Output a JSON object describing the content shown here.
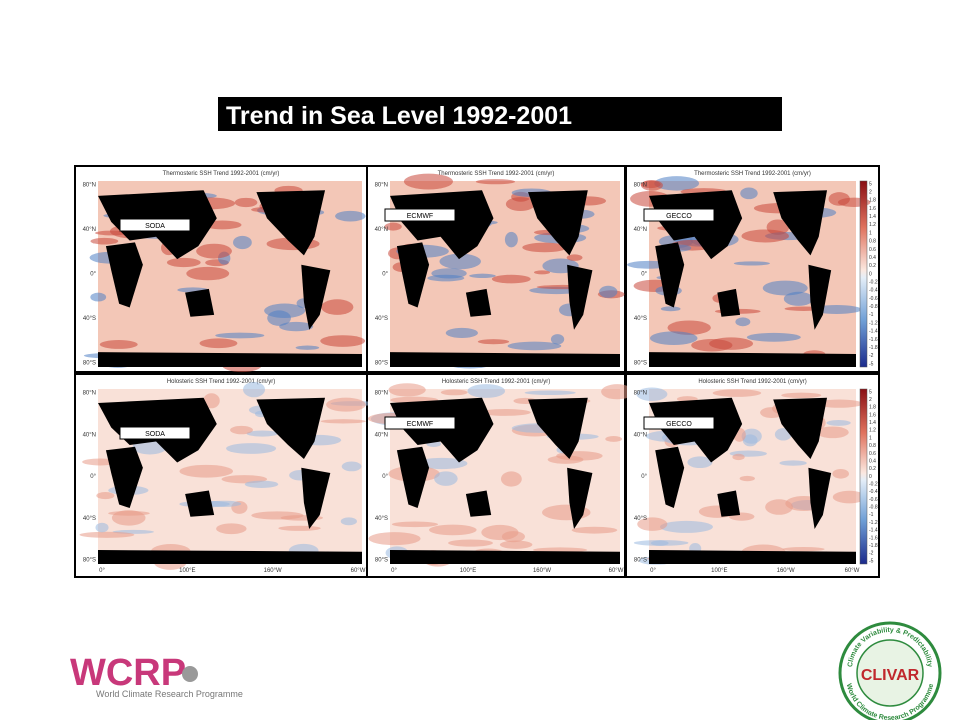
{
  "title": "Trend in  Sea Level 1992-2001",
  "panels": [
    {
      "caption": "Thermosteric SSH Trend 1992-2001 (cm/yr)",
      "label": "SODA"
    },
    {
      "caption": "Thermosteric SSH Trend 1992-2001 (cm/yr)",
      "label": "ECMWF"
    },
    {
      "caption": "Thermosteric SSH Trend 1992-2001 (cm/yr)",
      "label": "GECCO"
    },
    {
      "caption": "Holosteric SSH Trend 1992-2001 (cm/yr)",
      "label": "SODA"
    },
    {
      "caption": "Holosteric SSH Trend 1992-2001 (cm/yr)",
      "label": "ECMWF"
    },
    {
      "caption": "Holosteric SSH Trend 1992-2001 (cm/yr)",
      "label": "GECCO"
    }
  ],
  "lat_labels": [
    "80°N",
    "40°N",
    "0°",
    "40°S",
    "80°S"
  ],
  "lon_labels": [
    "0°",
    "100°E",
    "160°W",
    "60°W"
  ],
  "colorbar_labels": [
    5,
    2,
    1.8,
    1.6,
    1.4,
    1.2,
    1,
    0.8,
    0.6,
    0.4,
    0.2,
    0,
    -0.2,
    -0.4,
    -0.6,
    -0.8,
    -1,
    -1.2,
    -1.4,
    -1.6,
    -1.8,
    -2,
    -5
  ],
  "logos": {
    "wcrp": {
      "name": "WCRP",
      "subtitle": "World Climate Research Programme"
    },
    "clivar": {
      "name": "CLIVAR",
      "ring_top": "Climate Variability & Predictability",
      "ring_bottom": "World Climate Research Programme"
    }
  }
}
